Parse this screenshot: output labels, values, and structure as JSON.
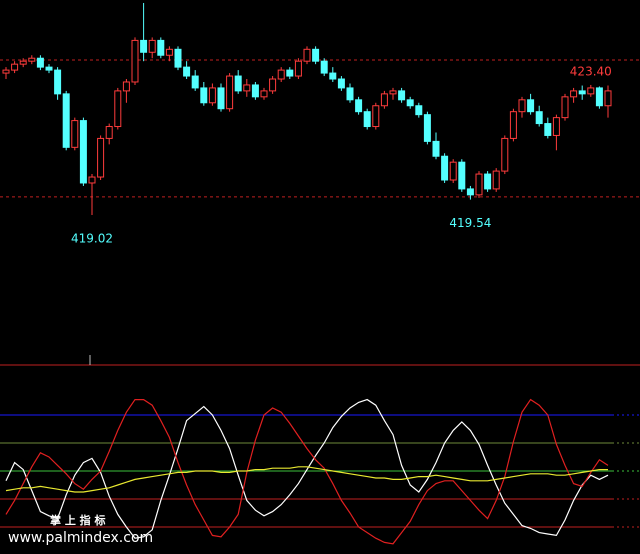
{
  "chart_data": [
    {
      "type": "candlestick",
      "open": [
        423.8,
        423.9,
        424.1,
        424.2,
        424.3,
        424.0,
        423.9,
        423.1,
        421.3,
        422.2,
        420.1,
        420.3,
        421.6,
        422.0,
        423.2,
        423.5,
        424.9,
        424.5,
        424.9,
        424.4,
        424.6,
        424.0,
        423.7,
        423.3,
        422.8,
        423.3,
        422.6,
        423.7,
        423.2,
        423.4,
        423.0,
        423.2,
        423.6,
        423.9,
        423.7,
        424.2,
        424.6,
        424.2,
        423.8,
        423.6,
        423.3,
        422.9,
        422.5,
        422.0,
        422.7,
        423.1,
        423.2,
        422.9,
        422.7,
        422.4,
        421.5,
        421.0,
        420.2,
        420.8,
        419.9,
        419.7,
        420.4,
        419.9,
        420.5,
        421.6,
        422.5,
        422.9,
        422.5,
        422.1,
        421.7,
        422.3,
        423.0,
        423.2,
        423.1,
        423.3,
        422.7
      ],
      "high": [
        424.0,
        424.2,
        424.3,
        424.4,
        424.4,
        424.1,
        424.0,
        423.2,
        422.3,
        422.3,
        420.4,
        421.7,
        422.1,
        423.3,
        423.6,
        425.0,
        426.16,
        425.0,
        425.0,
        424.7,
        424.7,
        424.2,
        423.9,
        423.5,
        423.45,
        423.45,
        423.8,
        423.9,
        423.6,
        423.5,
        423.3,
        423.7,
        424.0,
        424.0,
        424.3,
        424.7,
        424.7,
        424.3,
        424.0,
        423.7,
        423.45,
        423.0,
        422.6,
        422.8,
        423.2,
        423.3,
        423.3,
        423.0,
        422.8,
        422.5,
        421.8,
        421.1,
        420.9,
        420.9,
        420.0,
        420.5,
        420.5,
        420.6,
        421.7,
        422.6,
        423.0,
        423.1,
        422.7,
        422.3,
        422.4,
        423.1,
        423.3,
        423.38,
        423.4,
        423.35,
        423.38
      ],
      "low": [
        423.6,
        423.8,
        424.0,
        424.1,
        423.9,
        423.8,
        422.9,
        421.2,
        421.2,
        420.0,
        419.02,
        420.2,
        421.4,
        421.9,
        422.8,
        423.4,
        424.2,
        424.3,
        424.3,
        424.2,
        423.9,
        423.6,
        423.2,
        422.7,
        422.7,
        422.5,
        422.5,
        423.1,
        423.0,
        422.9,
        422.9,
        423.1,
        423.5,
        423.6,
        423.6,
        424.1,
        424.1,
        423.7,
        423.5,
        423.2,
        422.8,
        422.4,
        421.9,
        421.9,
        422.6,
        422.9,
        422.8,
        422.6,
        422.3,
        421.4,
        420.9,
        420.1,
        420.1,
        419.8,
        419.54,
        419.6,
        419.8,
        419.8,
        420.4,
        421.5,
        422.3,
        422.4,
        422.0,
        421.6,
        421.2,
        422.2,
        422.8,
        422.9,
        423.0,
        422.6,
        422.3
      ],
      "close": [
        423.9,
        424.1,
        424.2,
        424.3,
        424.0,
        423.9,
        423.1,
        421.3,
        422.2,
        420.1,
        420.3,
        421.6,
        422.0,
        423.2,
        423.5,
        424.9,
        424.5,
        424.9,
        424.4,
        424.6,
        424.0,
        423.7,
        423.3,
        422.8,
        423.3,
        422.6,
        423.7,
        423.2,
        423.4,
        423.0,
        423.2,
        423.6,
        423.9,
        423.7,
        424.2,
        424.6,
        424.2,
        423.8,
        423.6,
        423.3,
        422.9,
        422.5,
        422.0,
        422.7,
        423.1,
        423.2,
        422.9,
        422.7,
        422.4,
        421.5,
        421.0,
        420.2,
        420.8,
        419.9,
        419.7,
        420.4,
        419.9,
        420.5,
        421.6,
        422.5,
        422.9,
        422.5,
        422.1,
        421.7,
        422.3,
        423.0,
        423.2,
        423.1,
        423.3,
        422.7,
        423.2
      ],
      "up_color": "#ff3c3c",
      "down_color": "#54ffff",
      "ylim": [
        414.14,
        426.26
      ],
      "hlines": [
        424.24,
        419.63
      ],
      "hline_color": "#c02020",
      "annotations": [
        {
          "value": 419.02,
          "label": "419.02"
        },
        {
          "value": 419.54,
          "label": "419.54"
        },
        {
          "value": 423.4,
          "label": "423.40"
        }
      ]
    },
    {
      "type": "line",
      "ylim": [
        7.14,
        135.71
      ],
      "levels": [
        {
          "value": 100,
          "color": "#1a1aff"
        },
        {
          "value": 80,
          "color": "#6e8a3a"
        },
        {
          "value": 60,
          "color": "#3cbf3c"
        },
        {
          "value": 40,
          "color": "#c02020"
        },
        {
          "value": 20,
          "color": "#c02020"
        }
      ],
      "series": [
        {
          "color": "#ffffff",
          "values": [
            53,
            66,
            61,
            46,
            31,
            28,
            26,
            43,
            57,
            66,
            69,
            59,
            42,
            29,
            20,
            12,
            13,
            18,
            39,
            57,
            76,
            96,
            101,
            106,
            100,
            89,
            76,
            57,
            39,
            32,
            28,
            31,
            36,
            43,
            51,
            61,
            71,
            80,
            91,
            99,
            105,
            109,
            111,
            107,
            96,
            86,
            64,
            50,
            45,
            54,
            66,
            80,
            89,
            95,
            89,
            79,
            64,
            50,
            37,
            29,
            21,
            19,
            16,
            15,
            14,
            25,
            39,
            50,
            57,
            54,
            57
          ]
        },
        {
          "color": "#e02020",
          "values": [
            29,
            39,
            51,
            63,
            73,
            70,
            64,
            58,
            51,
            47,
            54,
            60,
            74,
            89,
            102,
            111,
            111,
            107,
            96,
            84,
            66,
            50,
            36,
            25,
            14,
            13,
            20,
            29,
            59,
            82,
            100,
            105,
            102,
            94,
            85,
            76,
            68,
            62,
            51,
            39,
            30,
            20,
            16,
            12,
            9,
            8,
            16,
            24,
            36,
            46,
            51,
            53,
            53,
            46,
            39,
            32,
            26,
            39,
            56,
            81,
            102,
            111,
            107,
            100,
            79,
            64,
            51,
            49,
            59,
            68,
            64
          ]
        },
        {
          "color": "#e8e830",
          "values": [
            46,
            47,
            48,
            48,
            49,
            48,
            47,
            46,
            45,
            45,
            46,
            47,
            48,
            50,
            52,
            54,
            55,
            56,
            57,
            58,
            59,
            59,
            60,
            60,
            60,
            59,
            59,
            60,
            60,
            61,
            61,
            62,
            62,
            62,
            63,
            63,
            62,
            61,
            60,
            59,
            58,
            57,
            56,
            55,
            55,
            54,
            54,
            55,
            56,
            56,
            57,
            56,
            55,
            54,
            53,
            53,
            53,
            54,
            55,
            56,
            57,
            58,
            58,
            58,
            57,
            57,
            58,
            59,
            60,
            61,
            61
          ]
        }
      ]
    }
  ],
  "watermark": {
    "title": "掌 上 指 标",
    "url": "www.palmindex.com"
  }
}
